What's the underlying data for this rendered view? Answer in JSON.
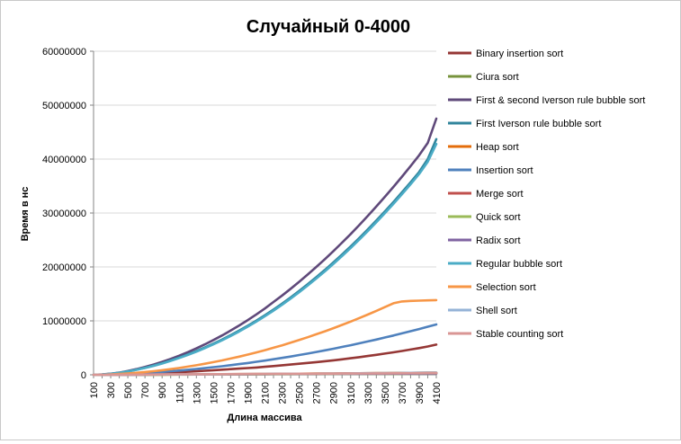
{
  "chart_data": {
    "type": "line",
    "title": "Случайный 0-4000",
    "xlabel": "Длина массива",
    "ylabel": "Время в нс",
    "ylim": [
      0,
      60000000
    ],
    "yticks": [
      "0",
      "10000000",
      "20000000",
      "30000000",
      "40000000",
      "50000000",
      "60000000"
    ],
    "x": [
      100,
      200,
      300,
      400,
      500,
      600,
      700,
      800,
      900,
      1000,
      1100,
      1200,
      1300,
      1400,
      1500,
      1600,
      1700,
      1800,
      1900,
      2000,
      2100,
      2200,
      2300,
      2400,
      2500,
      2600,
      2700,
      2800,
      2900,
      3000,
      3100,
      3200,
      3300,
      3400,
      3500,
      3600,
      3700,
      3800,
      3900,
      4000,
      4100
    ],
    "xtick_labels": [
      "100",
      "300",
      "500",
      "700",
      "900",
      "1100",
      "1300",
      "1500",
      "1700",
      "1900",
      "2100",
      "2300",
      "2500",
      "2700",
      "2900",
      "3100",
      "3300",
      "3500",
      "3700",
      "3900",
      "4100"
    ],
    "grid": "horizontal",
    "legend_position": "right",
    "series": [
      {
        "name": "Binary insertion sort",
        "color": "#953735",
        "values": [
          0,
          9000,
          30000,
          60000,
          100000,
          150000,
          200000,
          260000,
          330000,
          400000,
          480000,
          560000,
          650000,
          750000,
          850000,
          950000,
          1050000,
          1150000,
          1250000,
          1350000,
          1480000,
          1620000,
          1760000,
          1900000,
          2050000,
          2200000,
          2350000,
          2520000,
          2690000,
          2870000,
          3060000,
          3270000,
          3480000,
          3700000,
          3930000,
          4170000,
          4420000,
          4680000,
          4950000,
          5250000,
          5600000
        ]
      },
      {
        "name": "Ciura sort",
        "color": "#77933c",
        "values": [
          0,
          2000,
          5000,
          8000,
          12000,
          16000,
          21000,
          26000,
          31000,
          37000,
          43000,
          49000,
          55000,
          62000,
          69000,
          76000,
          84000,
          92000,
          100000,
          108000,
          117000,
          126000,
          135000,
          145000,
          155000,
          165000,
          175000,
          186000,
          197000,
          208000,
          219000,
          231000,
          243000,
          255000,
          268000,
          281000,
          294000,
          307000,
          321000,
          335000,
          350000
        ]
      },
      {
        "name": "First & second Iverson rule bubble sort",
        "color": "#5f497a",
        "values": [
          0,
          60000,
          200000,
          400000,
          700000,
          1050000,
          1450000,
          1900000,
          2400000,
          2950000,
          3550000,
          4200000,
          4900000,
          5650000,
          6450000,
          7300000,
          8200000,
          9150000,
          10150000,
          11200000,
          12300000,
          13500000,
          14700000,
          15950000,
          17250000,
          18600000,
          20000000,
          21450000,
          22950000,
          24500000,
          26100000,
          27750000,
          29450000,
          31200000,
          33000000,
          34850000,
          36750000,
          38700000,
          40700000,
          43000000,
          47500000
        ]
      },
      {
        "name": "First Iverson rule bubble sort",
        "color": "#31859c",
        "values": [
          0,
          55000,
          180000,
          360000,
          620000,
          940000,
          1300000,
          1700000,
          2150000,
          2650000,
          3200000,
          3780000,
          4400000,
          5070000,
          5780000,
          6540000,
          7350000,
          8200000,
          9100000,
          10050000,
          11050000,
          12100000,
          13200000,
          14350000,
          15550000,
          16800000,
          18100000,
          19450000,
          20850000,
          22300000,
          23800000,
          25350000,
          26950000,
          28600000,
          30300000,
          32050000,
          33850000,
          35700000,
          37600000,
          40000000,
          43700000
        ]
      },
      {
        "name": "Heap sort",
        "color": "#e46c0a",
        "values": [
          0,
          4000,
          9000,
          14000,
          20000,
          26000,
          33000,
          40000,
          47000,
          55000,
          63000,
          71000,
          80000,
          89000,
          98000,
          107000,
          117000,
          127000,
          137000,
          148000,
          158000,
          169000,
          180000,
          191000,
          203000,
          215000,
          227000,
          239000,
          251000,
          264000,
          277000,
          290000,
          303000,
          317000,
          331000,
          345000,
          359000,
          373000,
          388000,
          403000,
          418000
        ]
      },
      {
        "name": "Insertion sort",
        "color": "#4f81bd",
        "values": [
          0,
          13000,
          45000,
          95000,
          160000,
          240000,
          330000,
          430000,
          540000,
          660000,
          790000,
          930000,
          1080000,
          1240000,
          1410000,
          1590000,
          1780000,
          1980000,
          2190000,
          2410000,
          2640000,
          2880000,
          3130000,
          3390000,
          3660000,
          3940000,
          4230000,
          4530000,
          4840000,
          5160000,
          5490000,
          5830000,
          6180000,
          6540000,
          6910000,
          7290000,
          7680000,
          8080000,
          8490000,
          8910000,
          9340000
        ]
      },
      {
        "name": "Merge sort",
        "color": "#c0504d",
        "values": [
          0,
          3000,
          7000,
          11000,
          16000,
          21000,
          26000,
          32000,
          38000,
          44000,
          50000,
          57000,
          64000,
          71000,
          78000,
          85000,
          93000,
          101000,
          109000,
          117000,
          125000,
          134000,
          143000,
          152000,
          161000,
          170000,
          179000,
          189000,
          199000,
          209000,
          219000,
          229000,
          239000,
          250000,
          261000,
          272000,
          283000,
          294000,
          305000,
          317000,
          329000
        ]
      },
      {
        "name": "Quick sort",
        "color": "#9bbb59",
        "values": [
          0,
          2000,
          4000,
          7000,
          10000,
          13000,
          17000,
          21000,
          25000,
          29000,
          34000,
          38000,
          43000,
          48000,
          53000,
          58000,
          63000,
          69000,
          74000,
          80000,
          86000,
          92000,
          98000,
          104000,
          110000,
          117000,
          123000,
          130000,
          137000,
          144000,
          151000,
          158000,
          165000,
          172000,
          180000,
          187000,
          195000,
          203000,
          211000,
          219000,
          227000
        ]
      },
      {
        "name": "Radix sort",
        "color": "#8064a2",
        "values": [
          0,
          6000,
          12000,
          18000,
          24000,
          30000,
          36000,
          42000,
          48000,
          54000,
          60000,
          66000,
          72000,
          78000,
          84000,
          90000,
          96000,
          102000,
          108000,
          114000,
          120000,
          126000,
          132000,
          138000,
          144000,
          150000,
          156000,
          162000,
          168000,
          174000,
          180000,
          186000,
          192000,
          198000,
          204000,
          210000,
          216000,
          222000,
          228000,
          234000,
          240000
        ]
      },
      {
        "name": "Regular bubble sort",
        "color": "#4bacc6",
        "values": [
          0,
          50000,
          170000,
          345000,
          600000,
          910000,
          1260000,
          1650000,
          2090000,
          2580000,
          3110000,
          3680000,
          4290000,
          4950000,
          5650000,
          6400000,
          7200000,
          8040000,
          8930000,
          9870000,
          10860000,
          11900000,
          12990000,
          14130000,
          15320000,
          16560000,
          17850000,
          19190000,
          20580000,
          22020000,
          23510000,
          25050000,
          26640000,
          28280000,
          29970000,
          31710000,
          33500000,
          35340000,
          37230000,
          39500000,
          42800000
        ]
      },
      {
        "name": "Selection sort",
        "color": "#f79646",
        "values": [
          0,
          20000,
          70000,
          150000,
          250000,
          370000,
          510000,
          670000,
          850000,
          1050000,
          1270000,
          1510000,
          1770000,
          2050000,
          2350000,
          2670000,
          3010000,
          3370000,
          3750000,
          4150000,
          4570000,
          5010000,
          5470000,
          5950000,
          6450000,
          6970000,
          7510000,
          8070000,
          8650000,
          9250000,
          9870000,
          10510000,
          11170000,
          11850000,
          12550000,
          13270000,
          13600000,
          13700000,
          13750000,
          13800000,
          13850000
        ]
      },
      {
        "name": "Shell sort",
        "color": "#95b3d7",
        "values": [
          0,
          3000,
          7000,
          12000,
          17000,
          23000,
          29000,
          36000,
          43000,
          50000,
          58000,
          66000,
          74000,
          83000,
          92000,
          101000,
          110000,
          120000,
          130000,
          140000,
          150000,
          161000,
          172000,
          183000,
          194000,
          206000,
          218000,
          230000,
          242000,
          255000,
          268000,
          281000,
          294000,
          308000,
          322000,
          336000,
          350000,
          365000,
          380000,
          395000,
          410000
        ]
      },
      {
        "name": "Stable counting sort",
        "color": "#d99694",
        "values": [
          0,
          8000,
          16000,
          24000,
          32000,
          40000,
          48000,
          56000,
          64000,
          72000,
          80000,
          88000,
          96000,
          104000,
          112000,
          120000,
          128000,
          136000,
          144000,
          152000,
          160000,
          168000,
          176000,
          184000,
          192000,
          200000,
          208000,
          216000,
          224000,
          232000,
          240000,
          248000,
          256000,
          264000,
          272000,
          280000,
          288000,
          296000,
          304000,
          312000,
          320000
        ]
      }
    ]
  }
}
